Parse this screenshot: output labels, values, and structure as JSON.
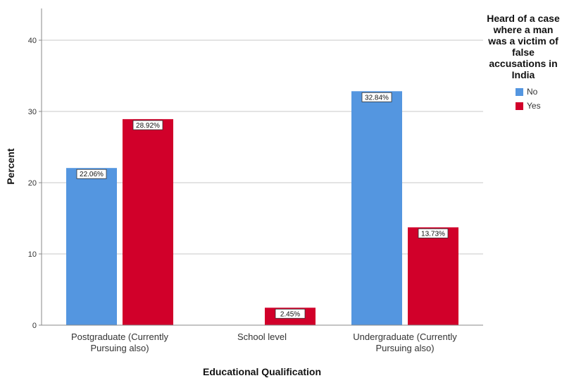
{
  "chart_data": {
    "type": "bar",
    "categories": [
      "Postgraduate (Currently\nPursuing also)",
      "School level",
      "Undergraduate (Currently\nPursuing also)"
    ],
    "series": [
      {
        "name": "No",
        "color": "#5496e0",
        "values": [
          22.06,
          null,
          32.84
        ],
        "labels": [
          "22.06%",
          "",
          "32.84%"
        ]
      },
      {
        "name": "Yes",
        "color": "#d1002a",
        "values": [
          28.92,
          2.45,
          13.73
        ],
        "labels": [
          "28.92%",
          "2.45%",
          "13.73%"
        ]
      }
    ],
    "xlabel": "Educational Qualification",
    "ylabel": "Percent",
    "ylim": [
      0,
      40
    ],
    "yticks": [
      0,
      10,
      20,
      30,
      40
    ],
    "grid": true,
    "legend": {
      "title": "Heard of a case where a man was a victim of false accusations in India",
      "placement": "right"
    }
  }
}
